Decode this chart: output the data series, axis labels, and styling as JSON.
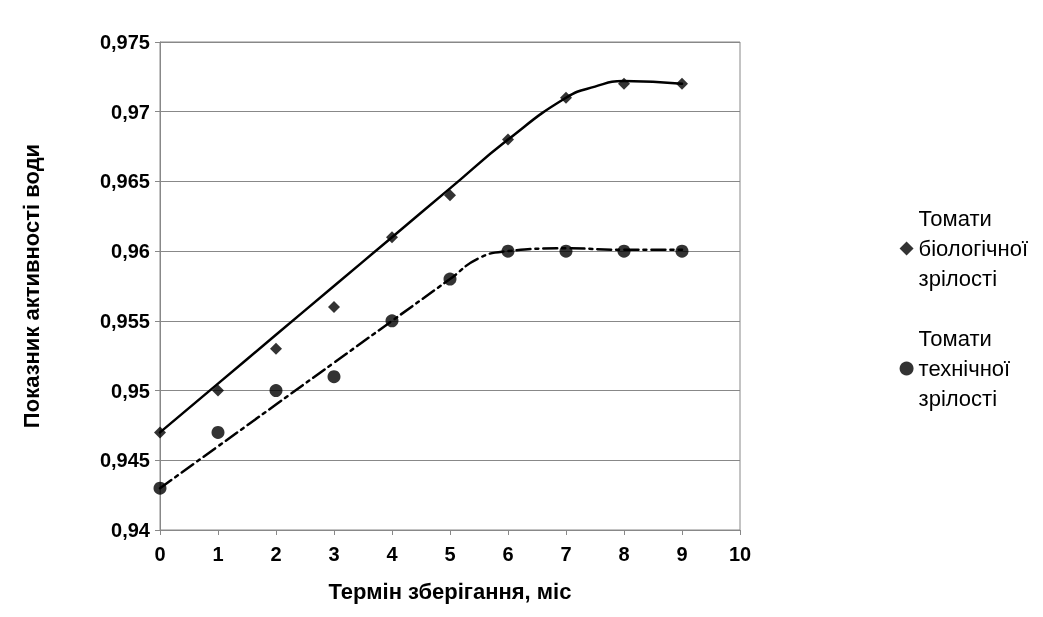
{
  "chart_data": {
    "type": "scatter",
    "xlabel": "Термін зберігання, міс",
    "ylabel": "Показник активності води",
    "x": [
      0,
      1,
      2,
      3,
      4,
      5,
      6,
      7,
      8,
      9
    ],
    "series": [
      {
        "name": "Томати біологічної зрілості",
        "color": "#000000",
        "marker": "diamond",
        "values": [
          0.947,
          0.95,
          0.953,
          0.956,
          0.961,
          0.964,
          0.968,
          0.971,
          0.972,
          0.972
        ]
      },
      {
        "name": "Томати технічної зрілості",
        "color": "#000000",
        "marker": "circle",
        "values": [
          0.943,
          0.947,
          0.95,
          0.951,
          0.955,
          0.958,
          0.96,
          0.96,
          0.96,
          0.96
        ]
      },
      {
        "type": "line",
        "color": "#000000",
        "line_style": "solid",
        "marker": "none",
        "x": [
          0,
          1,
          2,
          3,
          4,
          5,
          6,
          7,
          7.5,
          8,
          9
        ],
        "values": [
          0.947,
          0.9505,
          0.954,
          0.9575,
          0.961,
          0.9645,
          0.968,
          0.971,
          0.9718,
          0.9722,
          0.972
        ]
      },
      {
        "type": "line",
        "color": "#000000",
        "line_style": "dashed",
        "marker": "none",
        "x": [
          0,
          1,
          2,
          3,
          4,
          5,
          5.5,
          6,
          7,
          8,
          9
        ],
        "values": [
          0.943,
          0.946,
          0.949,
          0.952,
          0.955,
          0.958,
          0.9595,
          0.96,
          0.9602,
          0.9601,
          0.9601
        ]
      }
    ],
    "xlim": [
      0,
      10
    ],
    "xticks": [
      0,
      1,
      2,
      3,
      4,
      5,
      6,
      7,
      8,
      9,
      10
    ],
    "ylim": [
      0.94,
      0.975
    ],
    "yticks": [
      {
        "value": 0.94,
        "label": "0,94"
      },
      {
        "value": 0.945,
        "label": "0,945"
      },
      {
        "value": 0.95,
        "label": "0,95"
      },
      {
        "value": 0.955,
        "label": "0,955"
      },
      {
        "value": 0.96,
        "label": "0,96"
      },
      {
        "value": 0.965,
        "label": "0,965"
      },
      {
        "value": 0.97,
        "label": "0,97"
      },
      {
        "value": 0.975,
        "label": "0,975"
      }
    ],
    "grid": "y",
    "legend": "right"
  }
}
